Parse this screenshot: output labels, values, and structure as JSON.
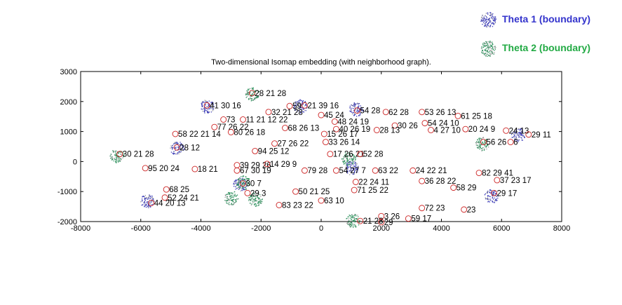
{
  "chart_data": {
    "type": "scatter",
    "title": "Two-dimensional Isomap embedding (with neighborhood graph).",
    "xlabel": "",
    "ylabel": "",
    "xlim": [
      -8000,
      8000
    ],
    "ylim": [
      -2000,
      3000
    ],
    "xticks": [
      -8000,
      -6000,
      -4000,
      -2000,
      0,
      2000,
      4000,
      6000,
      8000
    ],
    "yticks": [
      -2000,
      -1000,
      0,
      1000,
      2000,
      3000
    ],
    "grid": false,
    "legend_placement": "top-right (outside plot)",
    "series": [
      {
        "name": "Theta 1 (boundary)",
        "color": "#3b3bb8",
        "label_color": "#3333cc",
        "points": [
          {
            "x": -3800,
            "y": 1850
          },
          {
            "x": -700,
            "y": 1850
          },
          {
            "x": 1150,
            "y": 1750
          },
          {
            "x": -4800,
            "y": 450
          },
          {
            "x": 6550,
            "y": 900
          },
          {
            "x": -5800,
            "y": -1300
          },
          {
            "x": 5650,
            "y": -1150
          },
          {
            "x": -2700,
            "y": -750
          },
          {
            "x": 1000,
            "y": -200
          }
        ]
      },
      {
        "name": "Theta 2 (boundary)",
        "color": "#2a8f5a",
        "label_color": "#22aa44",
        "points": [
          {
            "x": -2300,
            "y": 2250
          },
          {
            "x": -6800,
            "y": 200
          },
          {
            "x": 5350,
            "y": 600
          },
          {
            "x": -2600,
            "y": -700
          },
          {
            "x": -3000,
            "y": -1200
          },
          {
            "x": 1050,
            "y": -1950
          },
          {
            "x": -2200,
            "y": -1250
          },
          {
            "x": 900,
            "y": 100
          }
        ]
      }
    ],
    "samples": [
      {
        "x": -3800,
        "y": 1870,
        "label": "41  30  16"
      },
      {
        "x": -2300,
        "y": 2280,
        "label": "28  21  28"
      },
      {
        "x": -1050,
        "y": 1850,
        "label": "59"
      },
      {
        "x": -550,
        "y": 1870,
        "label": "21  39  16"
      },
      {
        "x": 1200,
        "y": 1700,
        "label": "54  28"
      },
      {
        "x": 2150,
        "y": 1650,
        "label": "62  28"
      },
      {
        "x": 3350,
        "y": 1650,
        "label": "53  26  13"
      },
      {
        "x": 4550,
        "y": 1520,
        "label": "61  25  18"
      },
      {
        "x": -1750,
        "y": 1650,
        "label": "32  21  28"
      },
      {
        "x": 0,
        "y": 1550,
        "label": "45  24"
      },
      {
        "x": -3250,
        "y": 1400,
        "label": "73"
      },
      {
        "x": -2600,
        "y": 1400,
        "label": "11  21  12  22"
      },
      {
        "x": 450,
        "y": 1330,
        "label": "48  24  19"
      },
      {
        "x": 2450,
        "y": 1200,
        "label": "30  26"
      },
      {
        "x": 3450,
        "y": 1280,
        "label": "54  24  10"
      },
      {
        "x": -3550,
        "y": 1150,
        "label": "77  26  22"
      },
      {
        "x": -1200,
        "y": 1120,
        "label": "68  26  13"
      },
      {
        "x": 500,
        "y": 1080,
        "label": "40  26  19"
      },
      {
        "x": 1850,
        "y": 1050,
        "label": "28  13"
      },
      {
        "x": 3650,
        "y": 1050,
        "label": "4  27  10"
      },
      {
        "x": 4800,
        "y": 1080,
        "label": "20  24  9"
      },
      {
        "x": -4850,
        "y": 920,
        "label": "58  22  21  14"
      },
      {
        "x": -3000,
        "y": 980,
        "label": "80  26  18"
      },
      {
        "x": 100,
        "y": 920,
        "label": "15  26  17"
      },
      {
        "x": 6150,
        "y": 1030,
        "label": "24  13"
      },
      {
        "x": 6900,
        "y": 900,
        "label": "29  11"
      },
      {
        "x": 150,
        "y": 650,
        "label": "33  26  14"
      },
      {
        "x": -1550,
        "y": 600,
        "label": "27  26  22"
      },
      {
        "x": -4800,
        "y": 470,
        "label": "28  12"
      },
      {
        "x": -2200,
        "y": 350,
        "label": "94  25  12"
      },
      {
        "x": 300,
        "y": 250,
        "label": "17  26  21"
      },
      {
        "x": 1300,
        "y": 250,
        "label": "52  28"
      },
      {
        "x": -6700,
        "y": 250,
        "label": "30  21  28"
      },
      {
        "x": 5400,
        "y": 650,
        "label": "56  26"
      },
      {
        "x": 6300,
        "y": 650,
        "label": "6"
      },
      {
        "x": -5850,
        "y": -220,
        "label": "95  20  24"
      },
      {
        "x": -4200,
        "y": -250,
        "label": "18  21"
      },
      {
        "x": -2800,
        "y": -300,
        "label": "67  30  19"
      },
      {
        "x": -2800,
        "y": -120,
        "label": "39  29  26"
      },
      {
        "x": -1800,
        "y": -80,
        "label": "14  29  9"
      },
      {
        "x": -550,
        "y": -300,
        "label": "79  28"
      },
      {
        "x": 500,
        "y": -300,
        "label": "54  27  7"
      },
      {
        "x": 1800,
        "y": -300,
        "label": "63  22"
      },
      {
        "x": 3050,
        "y": -300,
        "label": "24  22  21"
      },
      {
        "x": 5250,
        "y": -380,
        "label": "82  29  41"
      },
      {
        "x": 5850,
        "y": -620,
        "label": "37  23  17"
      },
      {
        "x": 1150,
        "y": -680,
        "label": "22  24  11"
      },
      {
        "x": 3350,
        "y": -650,
        "label": "36  28  22"
      },
      {
        "x": -2600,
        "y": -730,
        "label": "30  7"
      },
      {
        "x": -5150,
        "y": -930,
        "label": "68  25"
      },
      {
        "x": -850,
        "y": -1000,
        "label": "50  21  25"
      },
      {
        "x": 1100,
        "y": -950,
        "label": "71  25  22"
      },
      {
        "x": 4400,
        "y": -870,
        "label": "58  29"
      },
      {
        "x": -5200,
        "y": -1200,
        "label": "52  24  21"
      },
      {
        "x": -2450,
        "y": -1050,
        "label": "29  3"
      },
      {
        "x": -5650,
        "y": -1380,
        "label": "44  20  13"
      },
      {
        "x": -1400,
        "y": -1450,
        "label": "83  23  22"
      },
      {
        "x": 0,
        "y": -1300,
        "label": "63  10"
      },
      {
        "x": 3350,
        "y": -1550,
        "label": "72  23"
      },
      {
        "x": 4750,
        "y": -1600,
        "label": "23"
      },
      {
        "x": 2000,
        "y": -1820,
        "label": "3  26"
      },
      {
        "x": 2900,
        "y": -1900,
        "label": "59  17"
      },
      {
        "x": 1300,
        "y": -1980,
        "label": "21  28"
      },
      {
        "x": 2000,
        "y": -2020,
        "label": "29"
      },
      {
        "x": 5750,
        "y": -1050,
        "label": "29  17"
      }
    ]
  },
  "legend": {
    "items": [
      {
        "label": "Theta 1 (boundary)",
        "color": "#3333cc",
        "icon": "theta-1-cluster-icon"
      },
      {
        "label": "Theta 2 (boundary)",
        "color": "#22aa44",
        "icon": "theta-2-cluster-icon"
      }
    ]
  },
  "colors": {
    "axis": "#000000",
    "sample_marker": "#cc2222",
    "sample_text": "#000000",
    "neighbor_dots": "#777777"
  }
}
